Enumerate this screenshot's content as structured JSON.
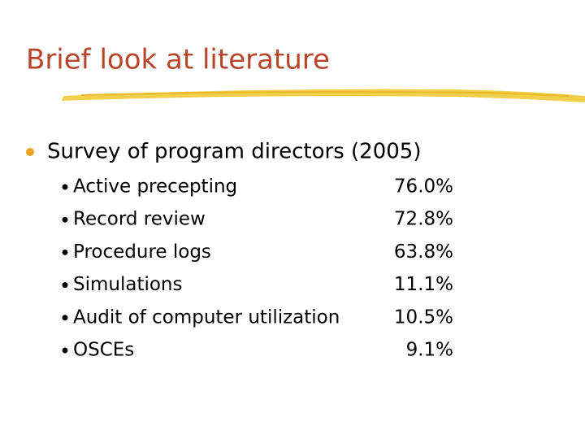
{
  "header": {
    "title": "Brief look at literature"
  },
  "body": {
    "bullet": "Survey of program directors (2005)",
    "items": [
      {
        "label": "Active precepting",
        "value": "76.0%"
      },
      {
        "label": "Record review",
        "value": "72.8%"
      },
      {
        "label": "Procedure logs",
        "value": "63.8%"
      },
      {
        "label": "Simulations",
        "value": "11.1%"
      },
      {
        "label": "Audit of computer utilization",
        "value": "10.5%"
      },
      {
        "label": "OSCEs",
        "value": "9.1%"
      }
    ]
  }
}
